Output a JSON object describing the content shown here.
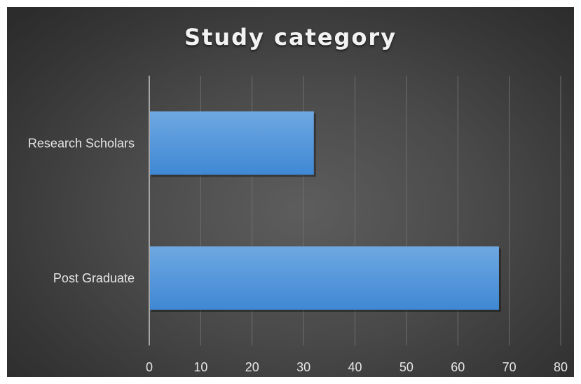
{
  "chart_data": {
    "type": "bar",
    "orientation": "horizontal",
    "title": "Study category",
    "categories": [
      "Research Scholars",
      "Post Graduate"
    ],
    "values": [
      32,
      68
    ],
    "xlabel": "",
    "ylabel": "",
    "xlim": [
      0,
      80
    ],
    "x_ticks": [
      0,
      10,
      20,
      30,
      40,
      50,
      60,
      70,
      80
    ],
    "grid": "vertical",
    "legend": "none",
    "colors": {
      "bar_top": "#6fa8e2",
      "bar_bottom": "#3f88d4",
      "grid": "#6e6e6e",
      "axis": "#a6a6a6",
      "text": "#e6e6e6"
    }
  }
}
